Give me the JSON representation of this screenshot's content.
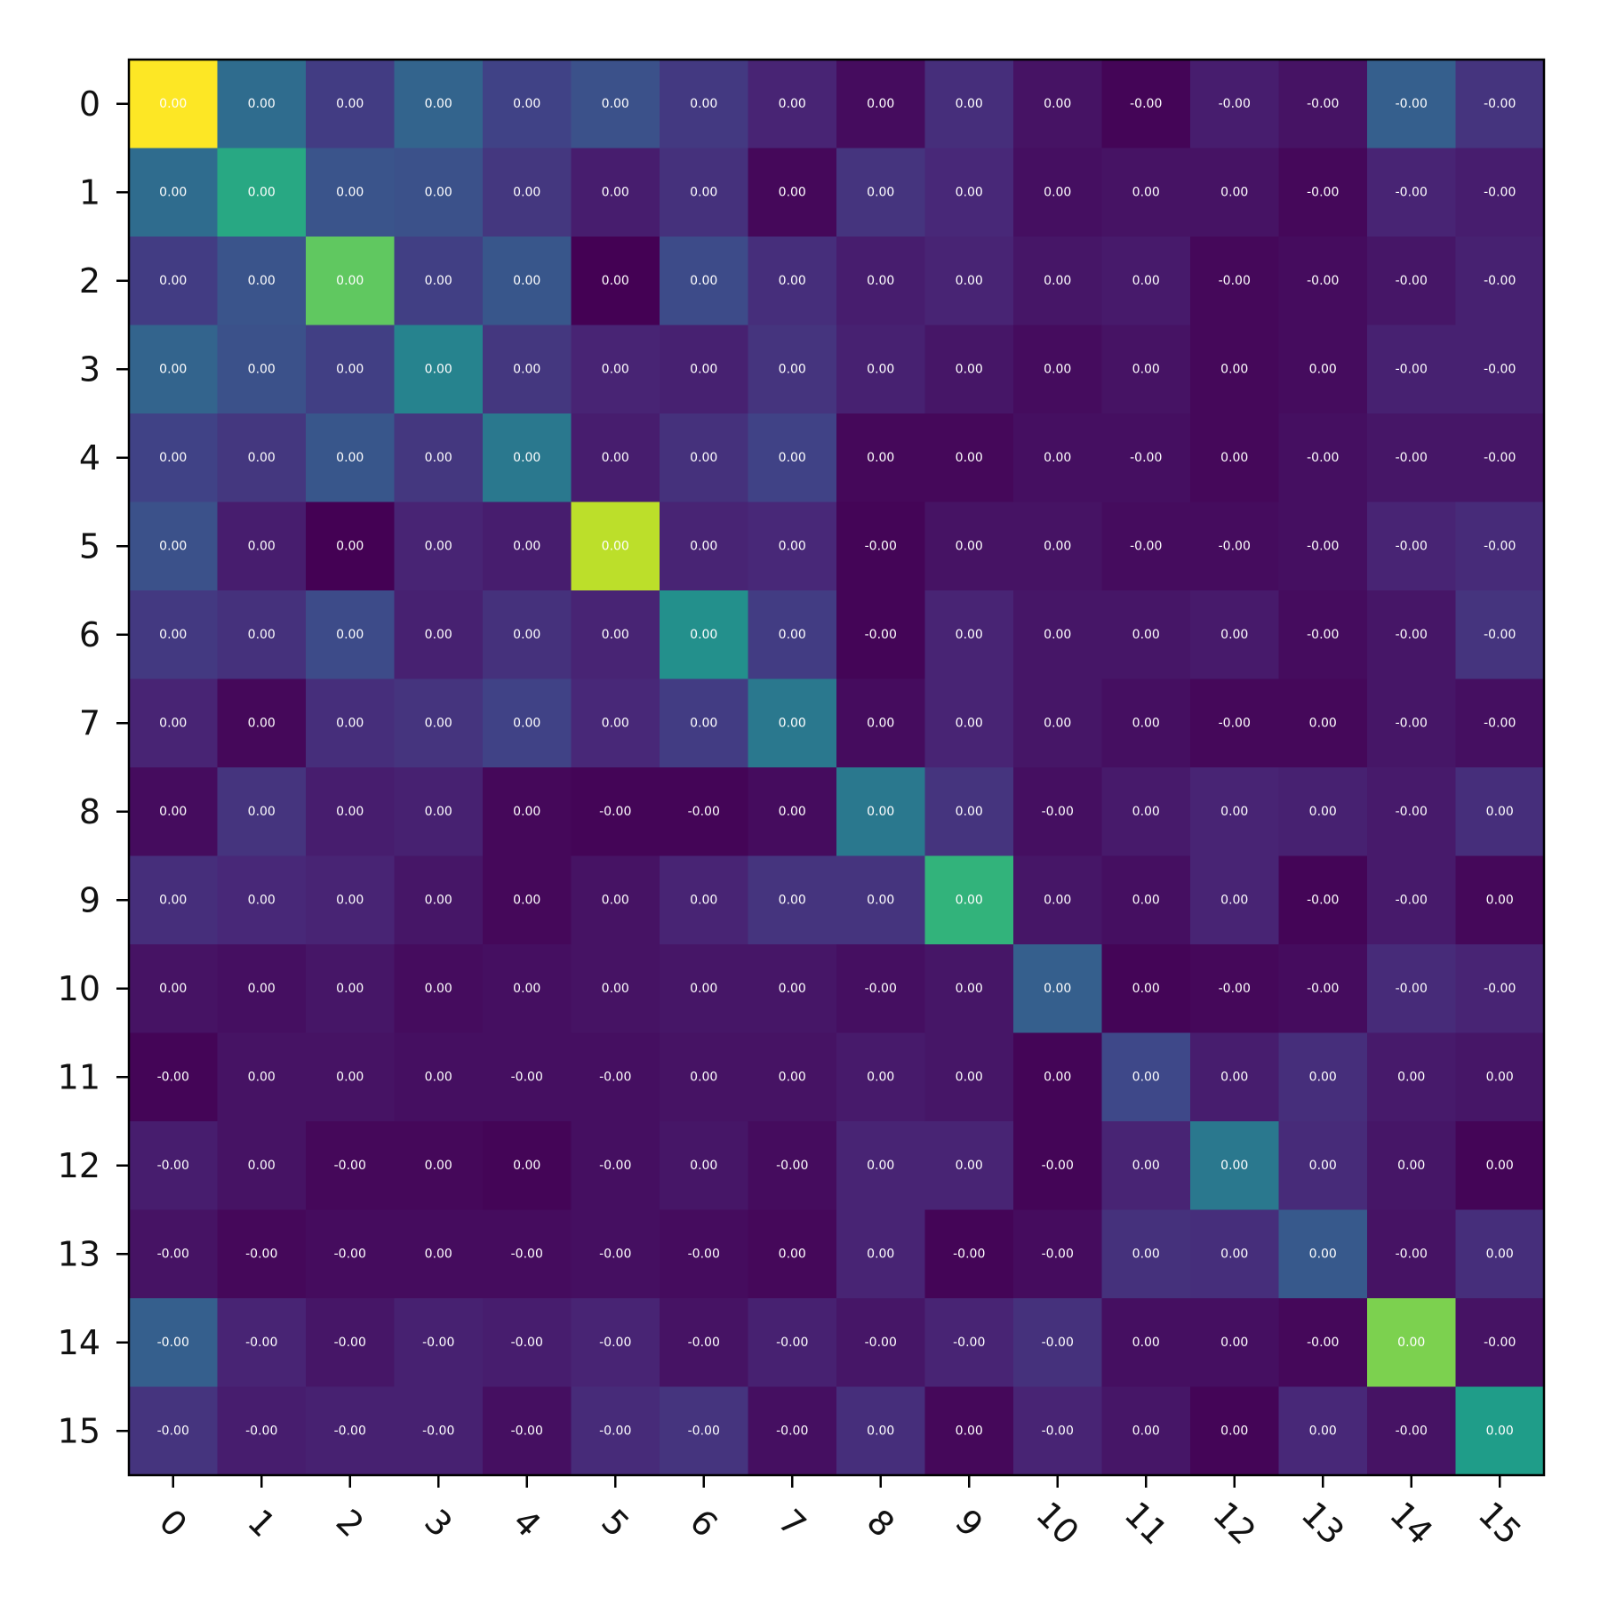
{
  "chart_data": {
    "type": "heatmap",
    "colormap": "viridis",
    "title": "",
    "xlabel": "",
    "ylabel": "",
    "grid": false,
    "legend": "none",
    "x_tick_labels": [
      "0",
      "1",
      "2",
      "3",
      "4",
      "5",
      "6",
      "7",
      "8",
      "9",
      "10",
      "11",
      "12",
      "13",
      "14",
      "15"
    ],
    "y_tick_labels": [
      "0",
      "1",
      "2",
      "3",
      "4",
      "5",
      "6",
      "7",
      "8",
      "9",
      "10",
      "11",
      "12",
      "13",
      "14",
      "15"
    ],
    "x_tick_rotation_deg": 45,
    "cell_labels": [
      [
        "0.00",
        "0.00",
        "0.00",
        "0.00",
        "0.00",
        "0.00",
        "0.00",
        "0.00",
        "0.00",
        "0.00",
        "0.00",
        "-0.00",
        "-0.00",
        "-0.00",
        "-0.00",
        "-0.00"
      ],
      [
        "0.00",
        "0.00",
        "0.00",
        "0.00",
        "0.00",
        "0.00",
        "0.00",
        "0.00",
        "0.00",
        "0.00",
        "0.00",
        "0.00",
        "0.00",
        "-0.00",
        "-0.00",
        "-0.00"
      ],
      [
        "0.00",
        "0.00",
        "0.00",
        "0.00",
        "0.00",
        "0.00",
        "0.00",
        "0.00",
        "0.00",
        "0.00",
        "0.00",
        "0.00",
        "-0.00",
        "-0.00",
        "-0.00",
        "-0.00"
      ],
      [
        "0.00",
        "0.00",
        "0.00",
        "0.00",
        "0.00",
        "0.00",
        "0.00",
        "0.00",
        "0.00",
        "0.00",
        "0.00",
        "0.00",
        "0.00",
        "0.00",
        "-0.00",
        "-0.00"
      ],
      [
        "0.00",
        "0.00",
        "0.00",
        "0.00",
        "0.00",
        "0.00",
        "0.00",
        "0.00",
        "0.00",
        "0.00",
        "0.00",
        "-0.00",
        "0.00",
        "-0.00",
        "-0.00",
        "-0.00"
      ],
      [
        "0.00",
        "0.00",
        "0.00",
        "0.00",
        "0.00",
        "0.00",
        "0.00",
        "0.00",
        "-0.00",
        "0.00",
        "0.00",
        "-0.00",
        "-0.00",
        "-0.00",
        "-0.00",
        "-0.00"
      ],
      [
        "0.00",
        "0.00",
        "0.00",
        "0.00",
        "0.00",
        "0.00",
        "0.00",
        "0.00",
        "-0.00",
        "0.00",
        "0.00",
        "0.00",
        "0.00",
        "-0.00",
        "-0.00",
        "-0.00"
      ],
      [
        "0.00",
        "0.00",
        "0.00",
        "0.00",
        "0.00",
        "0.00",
        "0.00",
        "0.00",
        "0.00",
        "0.00",
        "0.00",
        "0.00",
        "-0.00",
        "0.00",
        "-0.00",
        "-0.00"
      ],
      [
        "0.00",
        "0.00",
        "0.00",
        "0.00",
        "0.00",
        "-0.00",
        "-0.00",
        "0.00",
        "0.00",
        "0.00",
        "-0.00",
        "0.00",
        "0.00",
        "0.00",
        "-0.00",
        "0.00"
      ],
      [
        "0.00",
        "0.00",
        "0.00",
        "0.00",
        "0.00",
        "0.00",
        "0.00",
        "0.00",
        "0.00",
        "0.00",
        "0.00",
        "0.00",
        "0.00",
        "-0.00",
        "-0.00",
        "0.00"
      ],
      [
        "0.00",
        "0.00",
        "0.00",
        "0.00",
        "0.00",
        "0.00",
        "0.00",
        "0.00",
        "-0.00",
        "0.00",
        "0.00",
        "0.00",
        "-0.00",
        "-0.00",
        "-0.00",
        "-0.00"
      ],
      [
        "-0.00",
        "0.00",
        "0.00",
        "0.00",
        "-0.00",
        "-0.00",
        "0.00",
        "0.00",
        "0.00",
        "0.00",
        "0.00",
        "0.00",
        "0.00",
        "0.00",
        "0.00",
        "0.00"
      ],
      [
        "-0.00",
        "0.00",
        "-0.00",
        "0.00",
        "0.00",
        "-0.00",
        "0.00",
        "-0.00",
        "0.00",
        "0.00",
        "-0.00",
        "0.00",
        "0.00",
        "0.00",
        "0.00",
        "0.00"
      ],
      [
        "-0.00",
        "-0.00",
        "-0.00",
        "0.00",
        "-0.00",
        "-0.00",
        "-0.00",
        "0.00",
        "0.00",
        "-0.00",
        "-0.00",
        "0.00",
        "0.00",
        "0.00",
        "-0.00",
        "0.00"
      ],
      [
        "-0.00",
        "-0.00",
        "-0.00",
        "-0.00",
        "-0.00",
        "-0.00",
        "-0.00",
        "-0.00",
        "-0.00",
        "-0.00",
        "-0.00",
        "0.00",
        "0.00",
        "-0.00",
        "0.00",
        "-0.00"
      ],
      [
        "-0.00",
        "-0.00",
        "-0.00",
        "-0.00",
        "-0.00",
        "-0.00",
        "-0.00",
        "-0.00",
        "0.00",
        "0.00",
        "-0.00",
        "0.00",
        "0.00",
        "0.00",
        "-0.00",
        "0.00"
      ]
    ],
    "relative_intensity": [
      [
        1.0,
        0.35,
        0.18,
        0.32,
        0.2,
        0.25,
        0.17,
        0.1,
        0.03,
        0.13,
        0.05,
        0.01,
        0.08,
        0.05,
        0.3,
        0.15
      ],
      [
        0.35,
        0.6,
        0.26,
        0.25,
        0.16,
        0.08,
        0.14,
        0.02,
        0.15,
        0.11,
        0.04,
        0.05,
        0.05,
        0.02,
        0.1,
        0.08
      ],
      [
        0.18,
        0.26,
        0.75,
        0.19,
        0.27,
        0.0,
        0.23,
        0.13,
        0.08,
        0.1,
        0.06,
        0.07,
        0.02,
        0.03,
        0.06,
        0.09
      ],
      [
        0.32,
        0.25,
        0.19,
        0.45,
        0.16,
        0.1,
        0.09,
        0.15,
        0.09,
        0.06,
        0.03,
        0.05,
        0.02,
        0.03,
        0.09,
        0.09
      ],
      [
        0.2,
        0.16,
        0.27,
        0.16,
        0.4,
        0.08,
        0.14,
        0.2,
        0.02,
        0.02,
        0.04,
        0.04,
        0.02,
        0.04,
        0.06,
        0.06
      ],
      [
        0.25,
        0.08,
        0.0,
        0.1,
        0.08,
        0.9,
        0.1,
        0.11,
        0.01,
        0.05,
        0.05,
        0.03,
        0.03,
        0.04,
        0.1,
        0.12
      ],
      [
        0.17,
        0.14,
        0.23,
        0.09,
        0.14,
        0.1,
        0.5,
        0.18,
        0.01,
        0.1,
        0.06,
        0.06,
        0.07,
        0.03,
        0.06,
        0.15
      ],
      [
        0.1,
        0.02,
        0.13,
        0.15,
        0.2,
        0.11,
        0.18,
        0.4,
        0.03,
        0.1,
        0.06,
        0.04,
        0.02,
        0.02,
        0.06,
        0.04
      ],
      [
        0.03,
        0.15,
        0.08,
        0.09,
        0.02,
        0.01,
        0.01,
        0.03,
        0.4,
        0.15,
        0.04,
        0.07,
        0.1,
        0.09,
        0.07,
        0.13
      ],
      [
        0.13,
        0.11,
        0.1,
        0.06,
        0.02,
        0.05,
        0.1,
        0.15,
        0.15,
        0.65,
        0.06,
        0.04,
        0.1,
        0.01,
        0.07,
        0.02
      ],
      [
        0.05,
        0.04,
        0.06,
        0.03,
        0.04,
        0.05,
        0.06,
        0.06,
        0.04,
        0.06,
        0.3,
        0.01,
        0.02,
        0.03,
        0.12,
        0.1
      ],
      [
        0.01,
        0.05,
        0.05,
        0.04,
        0.04,
        0.04,
        0.05,
        0.05,
        0.07,
        0.06,
        0.01,
        0.22,
        0.08,
        0.13,
        0.07,
        0.06
      ],
      [
        0.08,
        0.05,
        0.02,
        0.02,
        0.01,
        0.04,
        0.06,
        0.03,
        0.1,
        0.1,
        0.01,
        0.1,
        0.4,
        0.12,
        0.06,
        0.01
      ],
      [
        0.05,
        0.02,
        0.03,
        0.03,
        0.03,
        0.04,
        0.03,
        0.02,
        0.1,
        0.01,
        0.03,
        0.14,
        0.13,
        0.28,
        0.05,
        0.13
      ],
      [
        0.3,
        0.1,
        0.06,
        0.09,
        0.08,
        0.1,
        0.05,
        0.09,
        0.06,
        0.1,
        0.14,
        0.04,
        0.04,
        0.02,
        0.8,
        0.05
      ],
      [
        0.15,
        0.08,
        0.09,
        0.09,
        0.04,
        0.12,
        0.15,
        0.04,
        0.13,
        0.02,
        0.1,
        0.06,
        0.01,
        0.11,
        0.05,
        0.55
      ]
    ]
  },
  "colors": {
    "viridis_stops": [
      "#440154",
      "#482878",
      "#3e4989",
      "#31688e",
      "#26828e",
      "#1f9e89",
      "#35b779",
      "#6ece58",
      "#b5de2b",
      "#fde725"
    ],
    "axes_frame": "#000000",
    "cell_text": "#ffffff",
    "tick_text": "#111111"
  }
}
